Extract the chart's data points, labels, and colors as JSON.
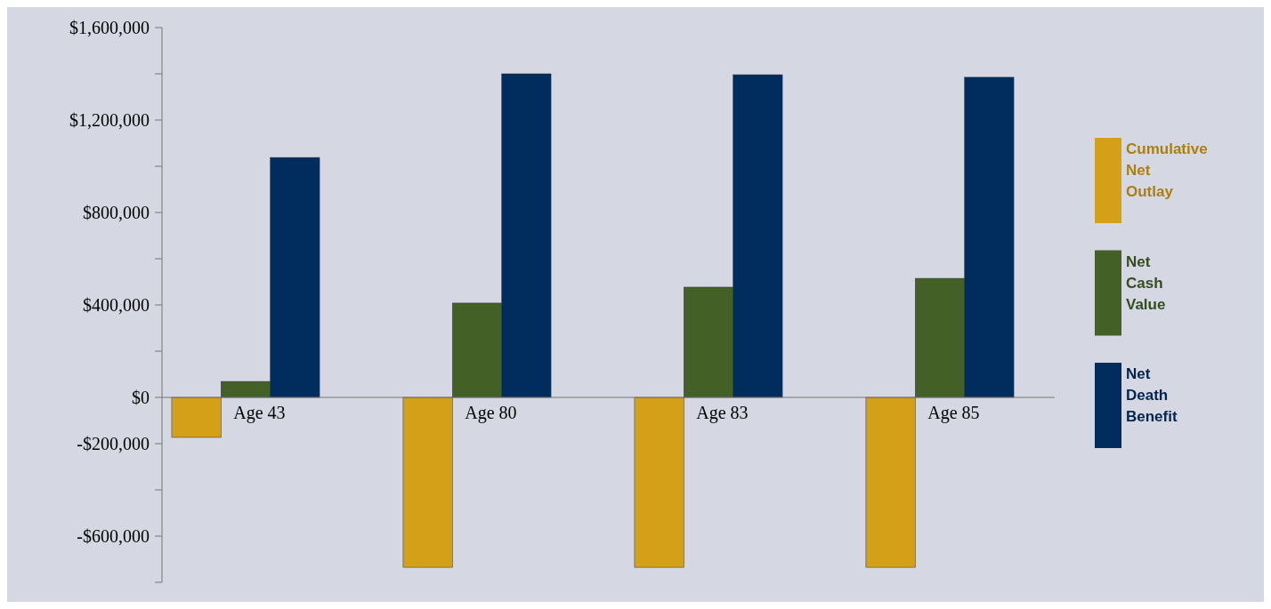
{
  "chart_data": {
    "type": "bar",
    "categories": [
      "Age 43",
      "Age 80",
      "Age 83",
      "Age 85"
    ],
    "series": [
      {
        "name": "Cumulative Net Outlay",
        "color": "#d4a017",
        "values": [
          -173000,
          -735000,
          -735000,
          -735000
        ]
      },
      {
        "name": "Net Cash Value",
        "color": "#436027",
        "values": [
          69000,
          408000,
          477000,
          515000
        ]
      },
      {
        "name": "Net Death Benefit",
        "color": "#002d5e",
        "values": [
          1038000,
          1400000,
          1396000,
          1385000
        ]
      }
    ],
    "ylim": [
      -800000,
      1600000
    ],
    "yticks": [
      {
        "value": -800000,
        "label": null
      },
      {
        "value": -600000,
        "label": "-$600,000"
      },
      {
        "value": -400000,
        "label": null
      },
      {
        "value": -200000,
        "label": "-$200,000"
      },
      {
        "value": 0,
        "label": "$0"
      },
      {
        "value": 200000,
        "label": null
      },
      {
        "value": 400000,
        "label": "$400,000"
      },
      {
        "value": 600000,
        "label": null
      },
      {
        "value": 800000,
        "label": "$800,000"
      },
      {
        "value": 1000000,
        "label": null
      },
      {
        "value": 1200000,
        "label": "$1,200,000"
      },
      {
        "value": 1400000,
        "label": null
      },
      {
        "value": 1600000,
        "label": "$1,600,000"
      }
    ],
    "legend": "right",
    "grid": false
  }
}
